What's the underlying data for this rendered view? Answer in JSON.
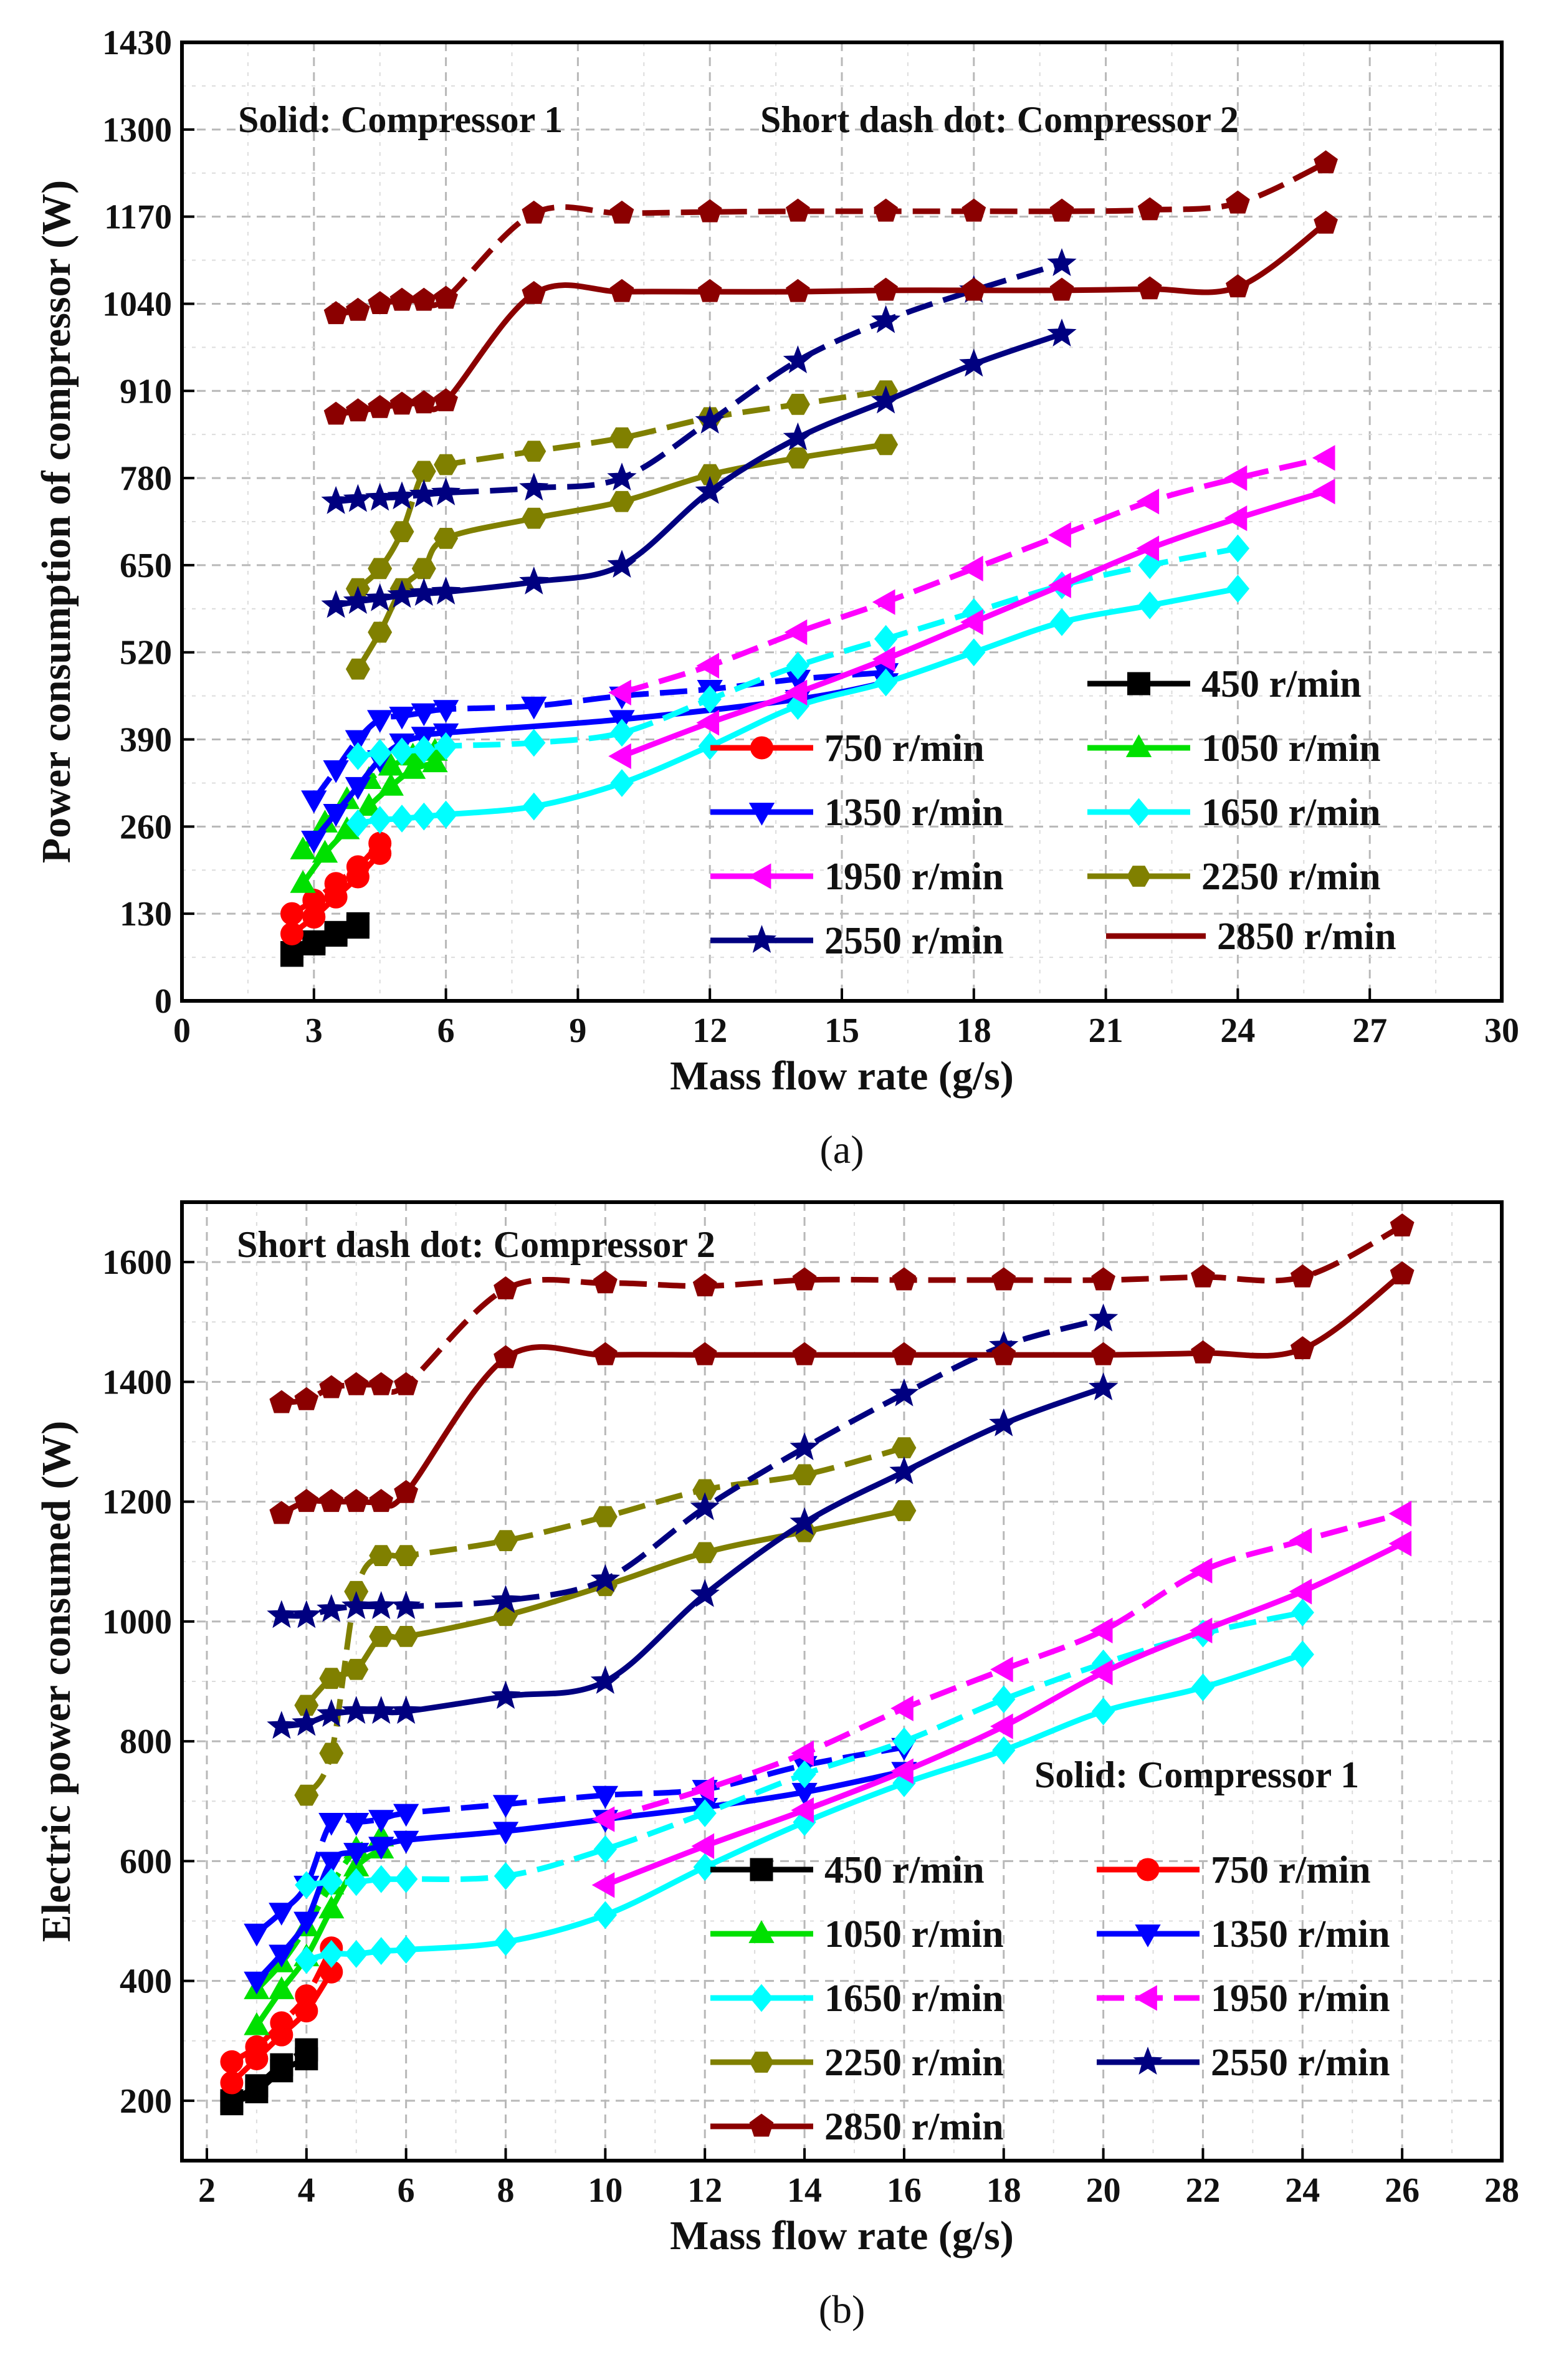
{
  "speeds": [
    "450",
    "750",
    "1050",
    "1350",
    "1650",
    "1950",
    "2250",
    "2550",
    "2850"
  ],
  "series_style": {
    "450": {
      "color": "#000000",
      "marker": "square"
    },
    "750": {
      "color": "#ff0000",
      "marker": "circle"
    },
    "1050": {
      "color": "#00e000",
      "marker": "triangle-up"
    },
    "1350": {
      "color": "#0000ff",
      "marker": "triangle-down"
    },
    "1650": {
      "color": "#00ffff",
      "marker": "diamond"
    },
    "1950": {
      "color": "#ff00ff",
      "marker": "triangle-left"
    },
    "2250": {
      "color": "#808000",
      "marker": "hexagon"
    },
    "2550": {
      "color": "#000080",
      "marker": "star"
    },
    "2850": {
      "color": "#8b0000",
      "marker": "pentagon"
    }
  },
  "chart_data": [
    {
      "type": "line",
      "panel_label": "(a)",
      "xlabel": "Mass flow rate (g/s)",
      "ylabel": "Power consumption of compressor (W)",
      "xlim": [
        0,
        30
      ],
      "ylim": [
        0,
        1430
      ],
      "xticks": [
        0,
        3,
        6,
        9,
        12,
        15,
        18,
        21,
        24,
        27,
        30
      ],
      "yticks": [
        0,
        130,
        260,
        390,
        520,
        650,
        780,
        910,
        1040,
        1170,
        1300,
        1430
      ],
      "grid": true,
      "annotations": [
        {
          "text": "Solid: Compressor 1",
          "position": "top-left"
        },
        {
          "text": "Short dash dot: Compressor 2",
          "position": "top-right"
        }
      ],
      "legend": {
        "position": "lower-right",
        "entries": [
          "450 r/min",
          "750 r/min",
          "1050 r/min",
          "1350 r/min",
          "1650 r/min",
          "1950 r/min",
          "2250 r/min",
          "2550 r/min",
          "2850 r/min"
        ]
      },
      "series": [
        {
          "speed": "450",
          "compressor": 1,
          "x": [
            2.5,
            3,
            3.5,
            4
          ],
          "y": [
            68,
            85,
            98,
            110
          ]
        },
        {
          "speed": "450",
          "compressor": 2,
          "x": [
            2.5,
            3,
            3.5,
            4
          ],
          "y": [
            72,
            88,
            102,
            115
          ]
        },
        {
          "speed": "750",
          "compressor": 1,
          "x": [
            2.5,
            3,
            3.5,
            4,
            4.5
          ],
          "y": [
            100,
            125,
            155,
            185,
            220
          ]
        },
        {
          "speed": "750",
          "compressor": 2,
          "x": [
            2.5,
            3,
            3.5,
            4,
            4.5
          ],
          "y": [
            130,
            150,
            175,
            200,
            235
          ]
        },
        {
          "speed": "1050",
          "compressor": 1,
          "x": [
            2.75,
            3.25,
            3.75,
            4.25,
            4.75,
            5.25,
            5.75
          ],
          "y": [
            175,
            220,
            255,
            290,
            320,
            345,
            355
          ]
        },
        {
          "speed": "1050",
          "compressor": 2,
          "x": [
            2.75,
            3.25,
            3.75,
            4.25,
            4.75,
            5.25,
            5.75
          ],
          "y": [
            225,
            265,
            300,
            330,
            350,
            365,
            372
          ]
        },
        {
          "speed": "1350",
          "compressor": 1,
          "x": [
            3,
            3.5,
            4,
            4.5,
            5,
            5.5,
            6,
            10,
            14,
            16
          ],
          "y": [
            240,
            280,
            320,
            360,
            385,
            395,
            400,
            420,
            450,
            475
          ]
        },
        {
          "speed": "1350",
          "compressor": 2,
          "x": [
            3,
            3.5,
            4,
            4.5,
            5,
            5.5,
            6,
            8,
            10,
            12,
            14,
            16
          ],
          "y": [
            300,
            345,
            390,
            420,
            425,
            430,
            435,
            440,
            455,
            465,
            480,
            490
          ]
        },
        {
          "speed": "1650",
          "compressor": 1,
          "x": [
            4,
            4.5,
            5,
            5.5,
            6,
            8,
            10,
            12,
            14,
            16,
            18,
            20,
            22,
            24
          ],
          "y": [
            265,
            270,
            272,
            275,
            278,
            290,
            325,
            380,
            440,
            475,
            520,
            565,
            590,
            615
          ]
        },
        {
          "speed": "1650",
          "compressor": 2,
          "x": [
            4,
            4.5,
            5,
            5.5,
            6,
            8,
            10,
            12,
            14,
            16,
            18,
            20,
            22,
            24
          ],
          "y": [
            365,
            370,
            372,
            375,
            380,
            385,
            400,
            450,
            500,
            540,
            580,
            620,
            650,
            675
          ]
        },
        {
          "speed": "1950",
          "compressor": 1,
          "x": [
            10,
            12,
            14,
            16,
            18,
            20,
            22,
            24,
            26
          ],
          "y": [
            365,
            415,
            460,
            510,
            565,
            620,
            675,
            720,
            760
          ]
        },
        {
          "speed": "1950",
          "compressor": 2,
          "x": [
            10,
            12,
            14,
            16,
            18,
            20,
            22,
            24,
            26
          ],
          "y": [
            460,
            500,
            550,
            595,
            645,
            695,
            745,
            780,
            810
          ]
        },
        {
          "speed": "2250",
          "compressor": 1,
          "x": [
            4,
            4.5,
            5,
            5.5,
            6,
            8,
            10,
            12,
            14,
            16
          ],
          "y": [
            495,
            550,
            615,
            645,
            690,
            720,
            745,
            785,
            810,
            830
          ]
        },
        {
          "speed": "2250",
          "compressor": 2,
          "x": [
            4,
            4.5,
            5,
            5.5,
            6,
            8,
            10,
            12,
            14,
            16
          ],
          "y": [
            615,
            645,
            700,
            790,
            800,
            820,
            840,
            870,
            890,
            910
          ]
        },
        {
          "speed": "2550",
          "compressor": 1,
          "x": [
            3.5,
            4,
            4.5,
            5,
            5.5,
            6,
            8,
            10,
            12,
            14,
            16,
            18,
            20
          ],
          "y": [
            590,
            596,
            600,
            605,
            608,
            610,
            625,
            650,
            760,
            840,
            895,
            950,
            995
          ]
        },
        {
          "speed": "2550",
          "compressor": 2,
          "x": [
            3.5,
            4,
            4.5,
            5,
            5.5,
            6,
            8,
            10,
            12,
            14,
            16,
            18,
            20
          ],
          "y": [
            745,
            748,
            750,
            752,
            755,
            758,
            765,
            780,
            865,
            955,
            1015,
            1060,
            1100
          ]
        },
        {
          "speed": "2850",
          "compressor": 1,
          "x": [
            3.5,
            4,
            4.5,
            5,
            5.5,
            6,
            8,
            10,
            12,
            14,
            16,
            18,
            20,
            22,
            24,
            26
          ],
          "y": [
            875,
            880,
            885,
            890,
            892,
            895,
            1055,
            1058,
            1058,
            1058,
            1060,
            1060,
            1060,
            1062,
            1065,
            1160
          ]
        },
        {
          "speed": "2850",
          "compressor": 2,
          "x": [
            3.5,
            4,
            4.5,
            5,
            5.5,
            6,
            8,
            10,
            12,
            14,
            16,
            18,
            20,
            22,
            24,
            26
          ],
          "y": [
            1025,
            1030,
            1040,
            1045,
            1045,
            1048,
            1175,
            1175,
            1177,
            1178,
            1178,
            1178,
            1178,
            1180,
            1190,
            1250
          ]
        }
      ]
    },
    {
      "type": "line",
      "panel_label": "(b)",
      "xlabel": "Mass flow rate (g/s)",
      "ylabel": "Electric power consumed (W)",
      "xlim": [
        1.5,
        28
      ],
      "ylim": [
        100,
        1700
      ],
      "xticks": [
        2,
        4,
        6,
        8,
        10,
        12,
        14,
        16,
        18,
        20,
        22,
        24,
        26,
        28
      ],
      "yticks": [
        200,
        400,
        600,
        800,
        1000,
        1200,
        1400,
        1600
      ],
      "grid": true,
      "annotations": [
        {
          "text": "Short dash dot: Compressor 2",
          "position": "top-left"
        },
        {
          "text": "Solid: Compressor 1",
          "position": "middle-right"
        }
      ],
      "legend": {
        "position": "lower-center",
        "entries": [
          "450 r/min",
          "750 r/min",
          "1050 r/min",
          "1350 r/min",
          "1650 r/min",
          "1950 r/min",
          "2250 r/min",
          "2550 r/min",
          "2850 r/min"
        ]
      },
      "series": [
        {
          "speed": "450",
          "compressor": 1,
          "x": [
            2.5,
            3,
            3.5,
            4
          ],
          "y": [
            195,
            215,
            250,
            270
          ]
        },
        {
          "speed": "450",
          "compressor": 2,
          "x": [
            2.5,
            3,
            3.5,
            4
          ],
          "y": [
            200,
            225,
            260,
            285
          ]
        },
        {
          "speed": "750",
          "compressor": 1,
          "x": [
            2.5,
            3,
            3.5,
            4,
            4.5
          ],
          "y": [
            230,
            270,
            310,
            350,
            415
          ]
        },
        {
          "speed": "750",
          "compressor": 2,
          "x": [
            2.5,
            3,
            3.5,
            4,
            4.5
          ],
          "y": [
            265,
            290,
            330,
            375,
            455
          ]
        },
        {
          "speed": "1050",
          "compressor": 1,
          "x": [
            3,
            3.5,
            4,
            4.5,
            5,
            5.5
          ],
          "y": [
            325,
            385,
            440,
            520,
            590,
            620
          ]
        },
        {
          "speed": "1050",
          "compressor": 2,
          "x": [
            3,
            3.5,
            4,
            4.5,
            5,
            5.5
          ],
          "y": [
            385,
            430,
            490,
            560,
            620,
            640
          ]
        },
        {
          "speed": "1350",
          "compressor": 1,
          "x": [
            3,
            3.5,
            4,
            4.5,
            5,
            5.5,
            6,
            8,
            10,
            12,
            14,
            16
          ],
          "y": [
            400,
            445,
            500,
            600,
            615,
            625,
            635,
            650,
            670,
            690,
            715,
            750
          ]
        },
        {
          "speed": "1350",
          "compressor": 2,
          "x": [
            3,
            3.5,
            4,
            4.5,
            5,
            5.5,
            6,
            8,
            10,
            12,
            14,
            16
          ],
          "y": [
            480,
            515,
            560,
            665,
            665,
            670,
            680,
            695,
            710,
            720,
            760,
            790
          ]
        },
        {
          "speed": "1650",
          "compressor": 1,
          "x": [
            4,
            4.5,
            5,
            5.5,
            6,
            8,
            10,
            12,
            14,
            16,
            18,
            20,
            22,
            24
          ],
          "y": [
            435,
            445,
            445,
            450,
            452,
            465,
            510,
            590,
            665,
            730,
            785,
            850,
            890,
            945
          ]
        },
        {
          "speed": "1650",
          "compressor": 2,
          "x": [
            4,
            4.5,
            5,
            5.5,
            6,
            8,
            10,
            12,
            14,
            16,
            18,
            20,
            22,
            24
          ],
          "y": [
            560,
            565,
            565,
            570,
            570,
            575,
            620,
            680,
            745,
            800,
            870,
            930,
            980,
            1015
          ]
        },
        {
          "speed": "1950",
          "compressor": 1,
          "x": [
            10,
            12,
            14,
            16,
            18,
            20,
            22,
            24,
            26
          ],
          "y": [
            560,
            625,
            685,
            750,
            825,
            915,
            985,
            1050,
            1130
          ]
        },
        {
          "speed": "1950",
          "compressor": 2,
          "x": [
            10,
            12,
            14,
            16,
            18,
            20,
            22,
            24,
            26
          ],
          "y": [
            670,
            720,
            780,
            855,
            920,
            985,
            1085,
            1135,
            1180
          ]
        },
        {
          "speed": "2250",
          "compressor": 1,
          "x": [
            4,
            4.5,
            5,
            5.5,
            6,
            8,
            10,
            12,
            14,
            16
          ],
          "y": [
            860,
            905,
            920,
            975,
            975,
            1010,
            1060,
            1115,
            1150,
            1185
          ]
        },
        {
          "speed": "2250",
          "compressor": 2,
          "x": [
            4,
            4.5,
            5,
            5.5,
            6,
            8,
            10,
            12,
            14,
            16
          ],
          "y": [
            710,
            780,
            1050,
            1110,
            1110,
            1135,
            1175,
            1220,
            1245,
            1290
          ]
        },
        {
          "speed": "2550",
          "compressor": 1,
          "x": [
            3.5,
            4,
            4.5,
            5,
            5.5,
            6,
            8,
            10,
            12,
            14,
            16,
            18,
            20
          ],
          "y": [
            825,
            830,
            845,
            850,
            850,
            850,
            875,
            900,
            1045,
            1165,
            1250,
            1330,
            1390
          ]
        },
        {
          "speed": "2550",
          "compressor": 2,
          "x": [
            3.5,
            4,
            4.5,
            5,
            5.5,
            6,
            8,
            10,
            12,
            14,
            16,
            18,
            20
          ],
          "y": [
            1010,
            1010,
            1020,
            1025,
            1025,
            1025,
            1035,
            1070,
            1190,
            1290,
            1380,
            1460,
            1505
          ]
        },
        {
          "speed": "2850",
          "compressor": 1,
          "x": [
            3.5,
            4,
            4.5,
            5,
            5.5,
            6,
            8,
            10,
            12,
            14,
            16,
            18,
            20,
            22,
            24,
            26
          ],
          "y": [
            1180,
            1200,
            1200,
            1200,
            1200,
            1215,
            1440,
            1445,
            1445,
            1445,
            1445,
            1445,
            1445,
            1448,
            1455,
            1580
          ]
        },
        {
          "speed": "2850",
          "compressor": 2,
          "x": [
            3.5,
            4,
            4.5,
            5,
            5.5,
            6,
            8,
            10,
            12,
            14,
            16,
            18,
            20,
            22,
            24,
            26
          ],
          "y": [
            1365,
            1370,
            1390,
            1395,
            1395,
            1395,
            1555,
            1565,
            1560,
            1570,
            1570,
            1570,
            1570,
            1575,
            1575,
            1660
          ]
        }
      ]
    }
  ]
}
